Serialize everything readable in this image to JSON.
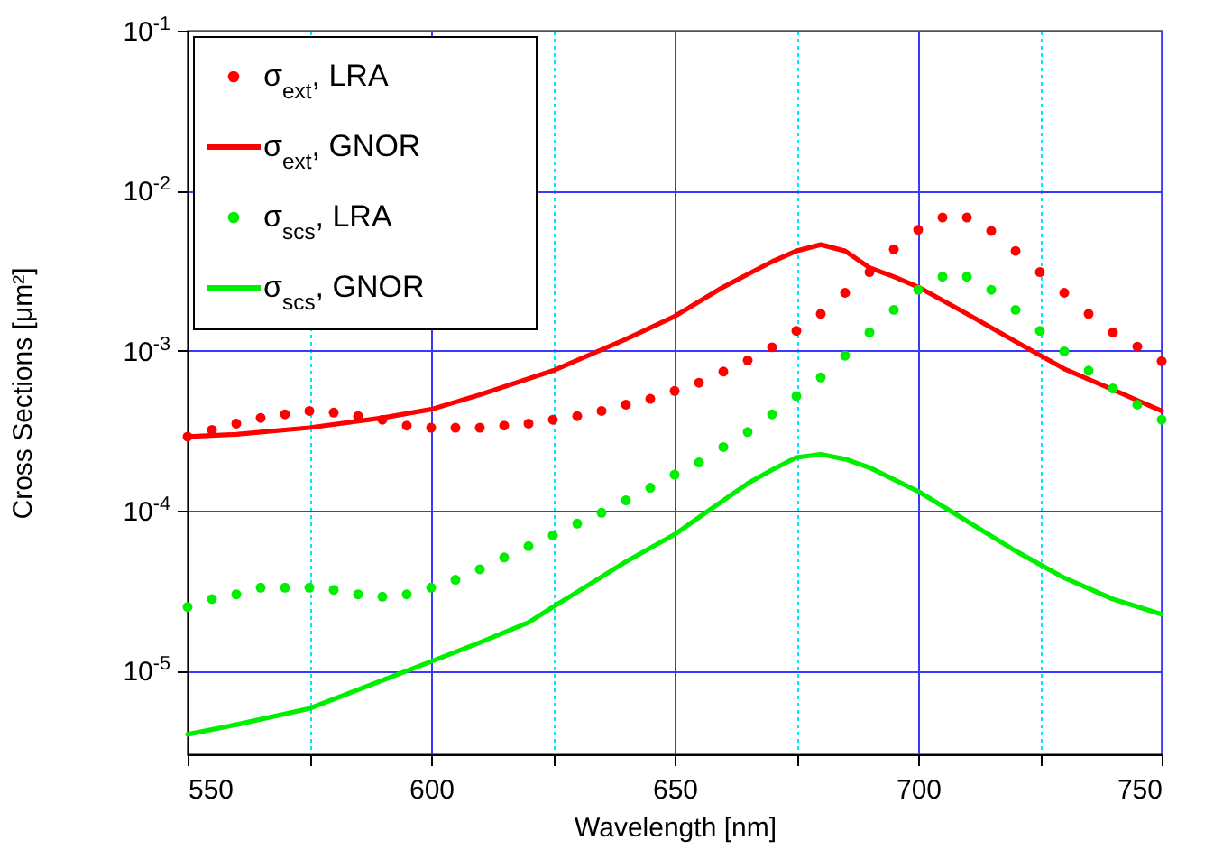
{
  "chart_data": {
    "type": "line",
    "xlabel": "Wavelength [nm]",
    "ylabel": "Cross Sections [μm²]",
    "xlim": [
      550,
      750
    ],
    "xticks": [
      550,
      {
        "value": 575,
        "label": null
      },
      600,
      {
        "value": 625,
        "label": null
      },
      650,
      {
        "value": 675,
        "label": null
      },
      700,
      {
        "value": 725,
        "label": null
      },
      750
    ],
    "ylim": [
      3e-06,
      0.1
    ],
    "yticks": [
      {
        "value": 1e-05,
        "label": "10$^{-5}$"
      },
      {
        "value": 0.0001,
        "label": "10$^{-4}$"
      },
      {
        "value": 0.001,
        "label": "10$^{-3}$"
      },
      {
        "value": 0.01,
        "label": "10$^{-2}$"
      },
      {
        "value": 0.1,
        "label": "10$^{-1}$"
      }
    ],
    "log": "y",
    "grid": true,
    "legend": "top left",
    "line_style": "solid",
    "series": [
      {
        "name": "σ$_{ext}$, LRA",
        "type": "scatter",
        "marker": "circle",
        "color": "#ff0000",
        "x": [
          550,
          555,
          560,
          565,
          570,
          575,
          580,
          585,
          590,
          595,
          600,
          605,
          610,
          615,
          620,
          625,
          630,
          635,
          640,
          645,
          650,
          655,
          660,
          665,
          670,
          675,
          680,
          685,
          690,
          695,
          700,
          705,
          710,
          715,
          720,
          725,
          730,
          735,
          740,
          745,
          750
        ],
        "values": [
          0.00029,
          0.00032,
          0.00035,
          0.00038,
          0.0004,
          0.00042,
          0.00041,
          0.00039,
          0.00037,
          0.00034,
          0.00033,
          0.00033,
          0.00033,
          0.00034,
          0.00035,
          0.00037,
          0.00039,
          0.00042,
          0.00046,
          0.0005,
          0.00056,
          0.00063,
          0.00074,
          0.00087,
          0.00105,
          0.00133,
          0.0017,
          0.0023,
          0.0031,
          0.0043,
          0.0057,
          0.0068,
          0.0068,
          0.0056,
          0.0042,
          0.0031,
          0.0023,
          0.0017,
          0.0013,
          0.00106,
          0.00086
        ]
      },
      {
        "name": "σ$_{ext}$, GNOR",
        "type": "line",
        "color": "#ff0000",
        "x": [
          550,
          560,
          575,
          590,
          600,
          610,
          625,
          640,
          650,
          660,
          665,
          670,
          675,
          680,
          685,
          690,
          695,
          700,
          710,
          720,
          730,
          740,
          750
        ],
        "values": [
          0.00029,
          0.0003,
          0.00033,
          0.00038,
          0.00043,
          0.00053,
          0.00075,
          0.00118,
          0.00164,
          0.0025,
          0.003,
          0.0036,
          0.0042,
          0.0046,
          0.0042,
          0.0033,
          0.0029,
          0.0025,
          0.0017,
          0.00114,
          0.00077,
          0.00057,
          0.00042
        ]
      },
      {
        "name": "σ$_{scs}$, LRA",
        "type": "scatter",
        "marker": "circle",
        "color": "#00ee00",
        "x": [
          550,
          555,
          560,
          565,
          570,
          575,
          580,
          585,
          590,
          595,
          600,
          605,
          610,
          615,
          620,
          625,
          630,
          635,
          640,
          645,
          650,
          655,
          660,
          665,
          670,
          675,
          680,
          685,
          690,
          695,
          700,
          705,
          710,
          715,
          720,
          725,
          730,
          735,
          740,
          745,
          750
        ],
        "values": [
          2.5e-05,
          2.8e-05,
          3e-05,
          3.3e-05,
          3.3e-05,
          3.3e-05,
          3.2e-05,
          3e-05,
          2.9e-05,
          3e-05,
          3.3e-05,
          3.7e-05,
          4.3e-05,
          5.1e-05,
          6e-05,
          7e-05,
          8.3e-05,
          9.7e-05,
          0.000116,
          0.000139,
          0.000168,
          0.0002,
          0.00025,
          0.00031,
          0.0004,
          0.00052,
          0.00068,
          0.00093,
          0.0013,
          0.0018,
          0.0024,
          0.0029,
          0.0029,
          0.0024,
          0.0018,
          0.00133,
          0.00099,
          0.00075,
          0.00058,
          0.00046,
          0.00037
        ]
      },
      {
        "name": "σ$_{scs}$, GNOR",
        "type": "line",
        "color": "#00ee00",
        "x": [
          550,
          560,
          575,
          590,
          600,
          610,
          620,
          625,
          630,
          640,
          650,
          660,
          665,
          670,
          675,
          680,
          685,
          690,
          700,
          710,
          720,
          730,
          740,
          750
        ],
        "values": [
          4e-06,
          4.6e-06,
          5.8e-06,
          8.7e-06,
          1.14e-05,
          1.5e-05,
          2e-05,
          2.5e-05,
          3.1e-05,
          4.8e-05,
          7.1e-05,
          0.000116,
          0.000148,
          0.00018,
          0.000215,
          0.000225,
          0.00021,
          0.000186,
          0.000132,
          8.6e-05,
          5.6e-05,
          3.8e-05,
          2.8e-05,
          2.25e-05
        ]
      }
    ]
  }
}
